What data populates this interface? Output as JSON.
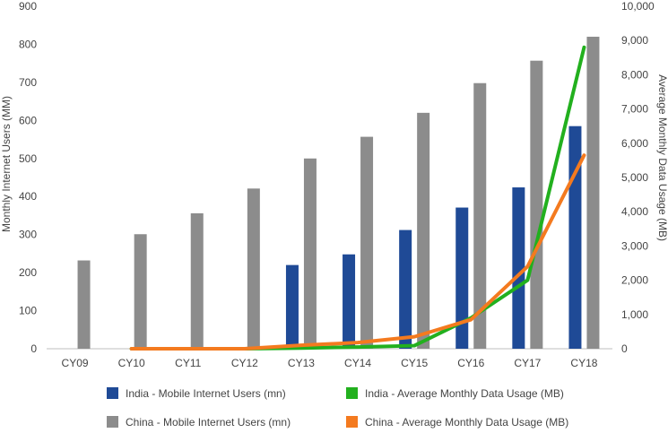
{
  "chart_data": {
    "type": "bar",
    "categories": [
      "CY09",
      "CY10",
      "CY11",
      "CY12",
      "CY13",
      "CY14",
      "CY15",
      "CY16",
      "CY17",
      "CY18"
    ],
    "series": [
      {
        "name": "India - Mobile Internet Users (mn)",
        "kind": "bar",
        "axis": "left",
        "color": "#1f4a96",
        "values": [
          null,
          null,
          null,
          null,
          220,
          248,
          312,
          371,
          424,
          585
        ]
      },
      {
        "name": "China - Mobile Internet Users (mn)",
        "kind": "bar",
        "axis": "left",
        "color": "#8c8c8c",
        "values": [
          232,
          301,
          356,
          421,
          500,
          557,
          620,
          698,
          757,
          820
        ]
      },
      {
        "name": "India - Average Monthly Data Usage (MB)",
        "kind": "line",
        "axis": "right",
        "color": "#22b01e",
        "values": [
          null,
          0,
          0,
          0,
          20,
          50,
          90,
          900,
          2000,
          8800
        ]
      },
      {
        "name": "China - Average Monthly Data Usage (MB)",
        "kind": "line",
        "axis": "right",
        "color": "#f47a1f",
        "values": [
          null,
          0,
          0,
          0,
          100,
          180,
          350,
          850,
          2400,
          5650
        ]
      }
    ],
    "ylabel": "Monthly Internet Users (MM)",
    "y2label": "Average Monthly Data Usage (MB)",
    "ylim": [
      0,
      900
    ],
    "y2lim": [
      0,
      10000
    ],
    "yticks": [
      "0",
      "100",
      "200",
      "300",
      "400",
      "500",
      "600",
      "700",
      "800",
      "900"
    ],
    "y2ticks": [
      "0",
      "1,000",
      "2,000",
      "3,000",
      "4,000",
      "5,000",
      "6,000",
      "7,000",
      "8,000",
      "9,000",
      "10,000"
    ],
    "grid": false,
    "legend": "bottom"
  }
}
